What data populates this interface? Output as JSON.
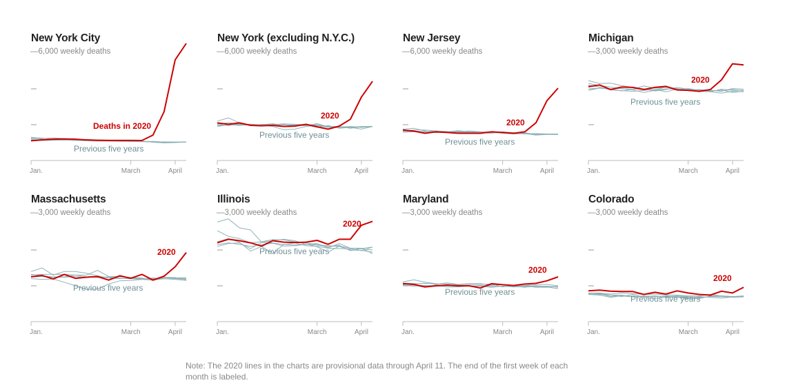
{
  "note": "Note: The 2020 lines in the charts are provisional data through April 11. The end of the first week of each month is labeled.",
  "colors": {
    "current_year": "#cc0000",
    "previous_years": "#8fb1b6",
    "axis": "#bbbbbb",
    "tick_text": "#888888"
  },
  "chart_data": [
    {
      "type": "line",
      "title": "New York City",
      "scale_label": "6,000 weekly deaths",
      "ylim": [
        0,
        6000
      ],
      "gridlines": [
        2000,
        4000,
        6000
      ],
      "x_ticks": [
        "Jan.",
        "March",
        "April"
      ],
      "x_tick_weeks": [
        0,
        9,
        13
      ],
      "label_2020": "Deaths in 2020",
      "label_previous": "Previous five years",
      "series_2020": [
        1100,
        1150,
        1190,
        1200,
        1190,
        1150,
        1130,
        1120,
        1120,
        1120,
        1115,
        1420,
        2730,
        5615,
        6540
      ],
      "series_previous": [
        [
          1300,
          1250,
          1180,
          1150,
          1120,
          1110,
          1100,
          1090,
          1080,
          1080,
          1060,
          1040,
          1020,
          1030,
          1040
        ],
        [
          1200,
          1220,
          1260,
          1220,
          1200,
          1150,
          1140,
          1120,
          1110,
          1090,
          1070,
          1060,
          1030,
          1010,
          1040
        ],
        [
          1250,
          1180,
          1150,
          1170,
          1130,
          1140,
          1110,
          1100,
          1100,
          1070,
          1090,
          1020,
          980,
          1000,
          1030
        ],
        [
          1150,
          1160,
          1180,
          1150,
          1150,
          1120,
          1100,
          1110,
          1090,
          1080,
          1060,
          1050,
          1040,
          1020,
          1020
        ],
        [
          1100,
          1120,
          1130,
          1140,
          1120,
          1100,
          1080,
          1080,
          1070,
          1060,
          1050,
          1040,
          1040,
          1030,
          1030
        ]
      ]
    },
    {
      "type": "line",
      "title": "New York (excluding N.Y.C.)",
      "scale_label": "6,000 weekly deaths",
      "ylim": [
        0,
        6000
      ],
      "gridlines": [
        2000,
        4000,
        6000
      ],
      "x_ticks": [
        "Jan.",
        "March",
        "April"
      ],
      "x_tick_weeks": [
        0,
        9,
        13
      ],
      "label_2020": "2020",
      "label_previous": "Previous five years",
      "series_2020": [
        2100,
        2020,
        2100,
        1960,
        1940,
        1960,
        1900,
        1920,
        2020,
        1880,
        1750,
        1920,
        2300,
        3540,
        4420
      ],
      "series_previous": [
        [
          2200,
          2380,
          2100,
          1980,
          2000,
          2050,
          1980,
          1980,
          1930,
          2060,
          1880,
          1850,
          1900,
          1850,
          1900
        ],
        [
          2050,
          2100,
          2050,
          2000,
          1980,
          1900,
          1720,
          1750,
          1900,
          1950,
          1900,
          1850,
          1850,
          1900,
          1900
        ],
        [
          1900,
          2000,
          1960,
          2000,
          2000,
          2050,
          1900,
          2000,
          2000,
          1850,
          1950,
          1800,
          1850,
          1750,
          1900
        ],
        [
          2000,
          1950,
          2050,
          1950,
          2020,
          1980,
          2000,
          1950,
          1980,
          2000,
          1900,
          1900,
          1800,
          1880,
          1900
        ],
        [
          1950,
          1980,
          2000,
          2030,
          1990,
          2000,
          2050,
          2020,
          2000,
          1950,
          1850,
          1880,
          1880,
          1850,
          1900
        ]
      ]
    },
    {
      "type": "line",
      "title": "New Jersey",
      "scale_label": "6,000 weekly deaths",
      "ylim": [
        0,
        6000
      ],
      "gridlines": [
        2000,
        4000,
        6000
      ],
      "x_ticks": [
        "Jan.",
        "March",
        "April"
      ],
      "x_tick_weeks": [
        0,
        9,
        13
      ],
      "label_2020": "2020",
      "label_previous": "Previous five years",
      "series_2020": [
        1700,
        1640,
        1520,
        1600,
        1560,
        1520,
        1520,
        1520,
        1600,
        1560,
        1520,
        1600,
        2100,
        3340,
        4040
      ],
      "series_previous": [
        [
          1750,
          1800,
          1650,
          1550,
          1600,
          1620,
          1600,
          1550,
          1520,
          1600,
          1550,
          1500,
          1420,
          1450,
          1450
        ],
        [
          1650,
          1700,
          1700,
          1650,
          1620,
          1580,
          1650,
          1600,
          1580,
          1520,
          1480,
          1500,
          1500,
          1480,
          1480
        ],
        [
          1600,
          1650,
          1600,
          1650,
          1600,
          1660,
          1600,
          1580,
          1560,
          1560,
          1520,
          1550,
          1450,
          1480,
          1460
        ],
        [
          1700,
          1650,
          1550,
          1600,
          1580,
          1600,
          1560,
          1560,
          1580,
          1550,
          1500,
          1520,
          1480,
          1470,
          1450
        ],
        [
          1580,
          1600,
          1620,
          1600,
          1570,
          1560,
          1580,
          1600,
          1560,
          1540,
          1520,
          1480,
          1500,
          1460,
          1460
        ]
      ]
    },
    {
      "type": "line",
      "title": "Michigan",
      "scale_label": "3,000 weekly deaths",
      "ylim": [
        0,
        3000
      ],
      "gridlines": [
        1000,
        2000,
        3000
      ],
      "x_ticks": [
        "Jan.",
        "March",
        "April"
      ],
      "x_tick_weeks": [
        0,
        9,
        13
      ],
      "label_2020": "2020",
      "label_previous": "Previous five years",
      "series_2020": [
        2060,
        2110,
        1980,
        2050,
        2040,
        1980,
        2040,
        2070,
        1970,
        1960,
        1930,
        1980,
        2250,
        2700,
        2670
      ],
      "series_previous": [
        [
          2230,
          2150,
          2160,
          2090,
          2040,
          2000,
          1970,
          2050,
          2010,
          1970,
          1980,
          1960,
          1940,
          1980,
          1950
        ],
        [
          2150,
          2090,
          2050,
          2000,
          1990,
          2080,
          2020,
          2040,
          2000,
          1950,
          1930,
          1920,
          1880,
          1930,
          1920
        ],
        [
          2100,
          2050,
          1970,
          1950,
          1930,
          1960,
          1980,
          1920,
          1990,
          2010,
          1960,
          1940,
          1970,
          1900,
          1930
        ],
        [
          2000,
          2020,
          2000,
          1940,
          1990,
          2000,
          1940,
          1980,
          2040,
          1990,
          1970,
          1920,
          1990,
          1960,
          1960
        ],
        [
          1960,
          2020,
          2000,
          2010,
          1970,
          1900,
          1960,
          2000,
          1990,
          1970,
          1950,
          1960,
          1930,
          2010,
          1990
        ]
      ]
    },
    {
      "type": "line",
      "title": "Massachusetts",
      "scale_label": "3,000 weekly deaths",
      "ylim": [
        0,
        3000
      ],
      "gridlines": [
        1000,
        2000,
        3000
      ],
      "x_ticks": [
        "Jan.",
        "March",
        "April"
      ],
      "x_tick_weeks": [
        0,
        9,
        13
      ],
      "label_2020": "2020",
      "label_previous": "Previous five years",
      "series_2020": [
        1250,
        1290,
        1190,
        1320,
        1210,
        1240,
        1260,
        1160,
        1280,
        1210,
        1320,
        1160,
        1270,
        1530,
        1930
      ],
      "series_previous": [
        [
          1400,
          1500,
          1300,
          1400,
          1400,
          1350,
          1280,
          1220,
          1250,
          1230,
          1200,
          1190,
          1240,
          1220,
          1230
        ],
        [
          1300,
          1320,
          1320,
          1320,
          1300,
          1300,
          1430,
          1260,
          1260,
          1230,
          1220,
          1150,
          1240,
          1230,
          1170
        ],
        [
          1200,
          1180,
          1190,
          1100,
          1000,
          900,
          910,
          1050,
          1140,
          1150,
          1180,
          1200,
          1230,
          1220,
          1200
        ],
        [
          1320,
          1280,
          1250,
          1250,
          1300,
          1250,
          1230,
          1250,
          1210,
          1200,
          1180,
          1160,
          1200,
          1180,
          1150
        ],
        [
          1250,
          1260,
          1240,
          1240,
          1260,
          1230,
          1260,
          1220,
          1200,
          1210,
          1190,
          1220,
          1200,
          1200,
          1180
        ]
      ]
    },
    {
      "type": "line",
      "title": "Illinois",
      "scale_label": "3,000 weekly deaths",
      "ylim": [
        0,
        3000
      ],
      "gridlines": [
        1000,
        2000,
        3000
      ],
      "x_ticks": [
        "Jan.",
        "March",
        "April"
      ],
      "x_tick_weeks": [
        0,
        9,
        13
      ],
      "label_2020": "2020",
      "label_previous": "Previous five years",
      "series_2020": [
        2200,
        2300,
        2260,
        2200,
        2110,
        2260,
        2220,
        2210,
        2220,
        2270,
        2160,
        2300,
        2300,
        2690,
        2800
      ],
      "series_previous": [
        [
          2780,
          2870,
          2620,
          2560,
          2220,
          2260,
          2300,
          2260,
          2160,
          2180,
          2060,
          2180,
          2050,
          2050,
          1900
        ],
        [
          2540,
          2380,
          2320,
          2200,
          2230,
          2290,
          2280,
          2230,
          2200,
          2150,
          2120,
          2100,
          2000,
          1990,
          1940
        ],
        [
          2230,
          2320,
          2220,
          1970,
          2100,
          1900,
          2160,
          2140,
          2170,
          2090,
          1940,
          2110,
          2050,
          2030,
          2000
        ],
        [
          2150,
          2200,
          2160,
          2100,
          2150,
          2190,
          2110,
          2120,
          2160,
          2140,
          2090,
          2130,
          1980,
          2040,
          2080
        ],
        [
          2100,
          2180,
          2200,
          2040,
          2210,
          2200,
          2150,
          2200,
          2120,
          2100,
          2050,
          2040,
          2030,
          1980,
          2080
        ]
      ]
    },
    {
      "type": "line",
      "title": "Maryland",
      "scale_label": "3,000 weekly deaths",
      "ylim": [
        0,
        3000
      ],
      "gridlines": [
        1000,
        2000,
        3000
      ],
      "x_ticks": [
        "Jan.",
        "March",
        "April"
      ],
      "x_tick_weeks": [
        0,
        9,
        13
      ],
      "label_2020": "2020",
      "label_previous": "Previous five years",
      "series_2020": [
        1060,
        1040,
        970,
        1000,
        1020,
        1000,
        1000,
        940,
        1060,
        1030,
        1010,
        1050,
        1070,
        1140,
        1250
      ],
      "series_previous": [
        [
          1110,
          1170,
          1100,
          1060,
          1050,
          1030,
          1040,
          1040,
          1050,
          970,
          1020,
          1000,
          960,
          960,
          980
        ],
        [
          1080,
          1060,
          1070,
          1050,
          1080,
          1040,
          1060,
          1060,
          1020,
          1030,
          990,
          1010,
          1030,
          1040,
          1000
        ],
        [
          1000,
          1020,
          960,
          1030,
          1010,
          1020,
          990,
          1000,
          1010,
          1040,
          980,
          1010,
          980,
          990,
          960
        ],
        [
          1040,
          1030,
          1000,
          1010,
          970,
          970,
          1000,
          990,
          960,
          990,
          990,
          960,
          990,
          970,
          920
        ],
        [
          1020,
          990,
          1010,
          1000,
          1000,
          990,
          990,
          1010,
          980,
          990,
          970,
          980,
          1000,
          980,
          980
        ]
      ]
    },
    {
      "type": "line",
      "title": "Colorado",
      "scale_label": "3,000 weekly deaths",
      "ylim": [
        0,
        3000
      ],
      "gridlines": [
        1000,
        2000,
        3000
      ],
      "x_ticks": [
        "Jan.",
        "March",
        "April"
      ],
      "x_tick_weeks": [
        0,
        9,
        13
      ],
      "label_2020": "2020",
      "label_previous": "Previous five years",
      "series_2020": [
        860,
        880,
        850,
        840,
        840,
        760,
        820,
        770,
        860,
        800,
        760,
        740,
        850,
        800,
        960
      ],
      "series_previous": [
        [
          760,
          780,
          700,
          720,
          690,
          700,
          720,
          690,
          690,
          690,
          670,
          700,
          700,
          680,
          690
        ],
        [
          780,
          760,
          740,
          740,
          700,
          720,
          700,
          720,
          700,
          660,
          700,
          680,
          660,
          690,
          720
        ],
        [
          760,
          790,
          740,
          700,
          760,
          680,
          650,
          680,
          680,
          640,
          640,
          720,
          720,
          700,
          700
        ],
        [
          800,
          800,
          770,
          800,
          780,
          760,
          770,
          750,
          740,
          720,
          720,
          760,
          720,
          700,
          720
        ],
        [
          760,
          740,
          680,
          720,
          700,
          700,
          700,
          700,
          720,
          700,
          680,
          700,
          720,
          680,
          700
        ]
      ]
    }
  ]
}
